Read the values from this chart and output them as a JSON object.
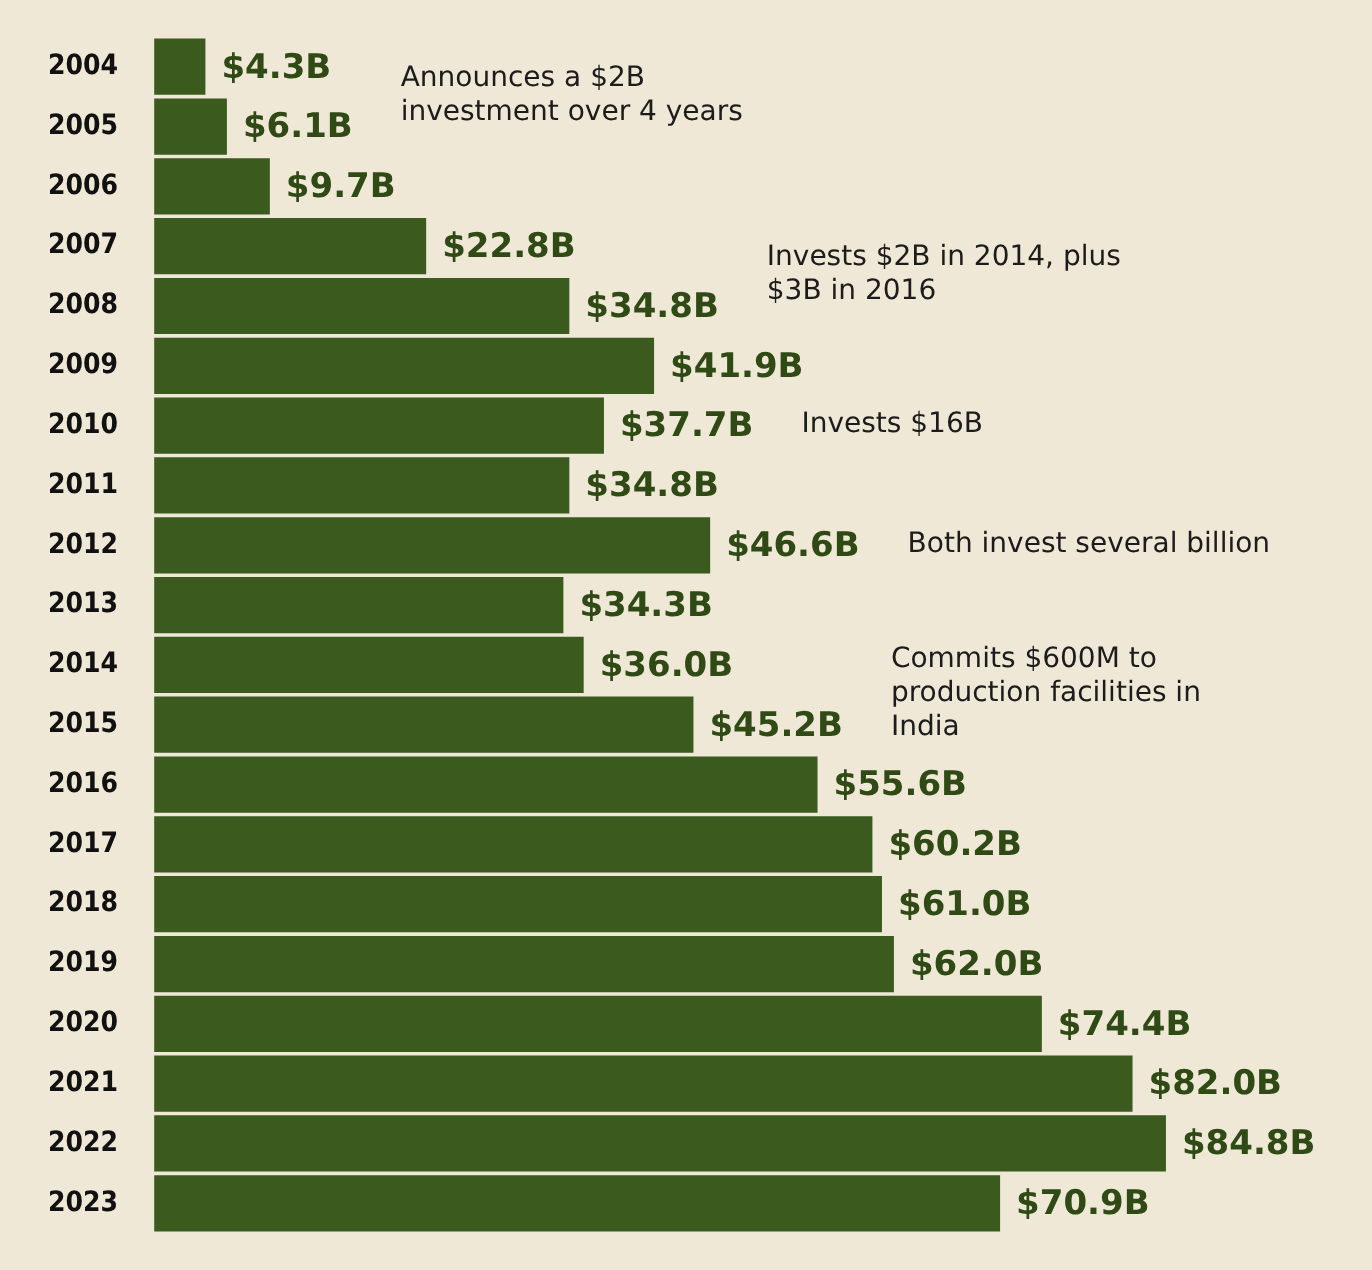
{
  "chart_data": {
    "type": "bar",
    "orientation": "horizontal",
    "categories": [
      "2004",
      "2005",
      "2006",
      "2007",
      "2008",
      "2009",
      "2010",
      "2011",
      "2012",
      "2013",
      "2014",
      "2015",
      "2016",
      "2017",
      "2018",
      "2019",
      "2020",
      "2021",
      "2022",
      "2023"
    ],
    "values": [
      4.3,
      6.1,
      9.7,
      22.8,
      34.8,
      41.9,
      37.7,
      34.8,
      46.6,
      34.3,
      36.0,
      45.2,
      55.6,
      60.2,
      61.0,
      62.0,
      74.4,
      82.0,
      84.8,
      70.9
    ],
    "value_labels": [
      "$4.3B",
      "$6.1B",
      "$9.7B",
      "$22.8B",
      "$34.8B",
      "$41.9B",
      "$37.7B",
      "$34.8B",
      "$46.6B",
      "$34.3B",
      "$36.0B",
      "$45.2B",
      "$55.6B",
      "$60.2B",
      "$61.0B",
      "$62.0B",
      "$74.4B",
      "$82.0B",
      "$84.8B",
      "$70.9B"
    ],
    "color": "#3a5a1e",
    "grid": false,
    "legend": false,
    "tick_labels": "y",
    "annotations": [
      "Announces a $2B investment over 4 years",
      "Invests $2B in 2014, plus $3B in 2016",
      "Invests $16B",
      "Both invest several billion",
      "Commits $600M to production facilities in India"
    ]
  }
}
